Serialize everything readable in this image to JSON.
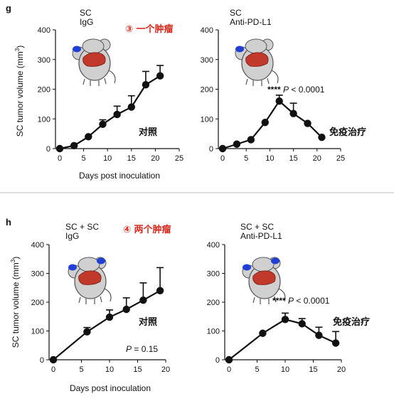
{
  "chart_data": [
    {
      "type": "line",
      "panel_label": "g",
      "group_label": [
        "SC",
        "IgG"
      ],
      "xlabel": "Days post inoculation",
      "ylabel": "SC tumor volume (mm",
      "ylabel_sup": "3",
      "ylabel_close": ")",
      "xlim": [
        0,
        25
      ],
      "ylim": [
        0,
        400
      ],
      "xticks": [
        0,
        5,
        10,
        15,
        20,
        25
      ],
      "yticks": [
        0,
        100,
        200,
        300,
        400
      ],
      "x": [
        0,
        3,
        6,
        9,
        12,
        15,
        18,
        21
      ],
      "y": [
        0,
        10,
        40,
        82,
        115,
        140,
        215,
        245
      ],
      "err": [
        0,
        0,
        0,
        15,
        28,
        38,
        45,
        35
      ],
      "annotation_cn": "③ 一个肿瘤",
      "note_cn": "对照",
      "mouse_tumors": 1
    },
    {
      "type": "line",
      "group_label": [
        "SC",
        "Anti-PD-L1"
      ],
      "xlim": [
        0,
        25
      ],
      "ylim": [
        0,
        400
      ],
      "xticks": [
        0,
        5,
        10,
        15,
        20,
        25
      ],
      "yticks": [
        0,
        100,
        200,
        300,
        400
      ],
      "x": [
        0,
        3,
        6,
        9,
        12,
        15,
        18,
        21
      ],
      "y": [
        0,
        15,
        30,
        88,
        160,
        118,
        85,
        38
      ],
      "err": [
        0,
        0,
        0,
        0,
        20,
        35,
        0,
        0
      ],
      "stat_stars": "****",
      "stat_text": "P < 0.0001",
      "note_cn": "免疫治疗",
      "mouse_tumors": 1
    },
    {
      "type": "line",
      "panel_label": "h",
      "group_label": [
        "SC + SC",
        "IgG"
      ],
      "xlabel": "Days post inoculation",
      "ylabel": "SC tumor volume (mm",
      "ylabel_sup": "3",
      "ylabel_close": ")",
      "xlim": [
        0,
        20
      ],
      "ylim": [
        0,
        400
      ],
      "xticks": [
        0,
        5,
        10,
        15,
        20
      ],
      "yticks": [
        0,
        100,
        200,
        300,
        400
      ],
      "x": [
        0,
        6,
        10,
        13,
        16,
        19
      ],
      "y": [
        0,
        97,
        148,
        175,
        207,
        240
      ],
      "err": [
        0,
        15,
        25,
        40,
        60,
        80
      ],
      "stat_text": "P = 0.15",
      "annotation_cn": "④ 两个肿瘤",
      "note_cn": "对照",
      "mouse_tumors": 2
    },
    {
      "type": "line",
      "group_label": [
        "SC + SC",
        "Anti-PD-L1"
      ],
      "xlim": [
        0,
        20
      ],
      "ylim": [
        0,
        400
      ],
      "xticks": [
        0,
        5,
        10,
        15,
        20
      ],
      "yticks": [
        0,
        100,
        200,
        300,
        400
      ],
      "x": [
        0,
        6,
        10,
        13,
        16,
        19
      ],
      "y": [
        0,
        92,
        140,
        125,
        85,
        58
      ],
      "err": [
        0,
        0,
        22,
        18,
        28,
        40
      ],
      "stat_stars": "****",
      "stat_text": "P < 0.0001",
      "note_cn": "免疫治疗",
      "mouse_tumors": 2
    }
  ],
  "colors": {
    "ink": "#111111",
    "annotation": "#d9291c",
    "mouse_body": "#d0d0d0",
    "liver": "#c0392b",
    "tumor": "#1f3fd6",
    "divider": "#bfbfbf"
  }
}
